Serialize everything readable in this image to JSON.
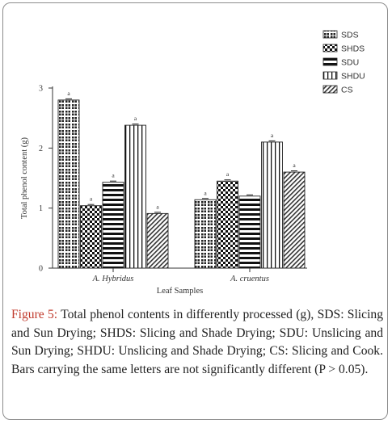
{
  "chart_data": {
    "type": "bar",
    "ylabel": "Total phenol content (g)",
    "xlabel": "Leaf Samples",
    "ylim": [
      0,
      3
    ],
    "yticks": [
      "0",
      "1",
      "2",
      "3"
    ],
    "grid": false,
    "legend_position": "top-right",
    "categories": [
      "A. Hybridus",
      "A. cruentus"
    ],
    "series": [
      {
        "name": "SDS",
        "pattern": "checker",
        "values": [
          2.8,
          1.14
        ],
        "labels": [
          "a",
          "a"
        ]
      },
      {
        "name": "SHDS",
        "pattern": "crosshatch",
        "values": [
          1.04,
          1.45
        ],
        "labels": [
          "a",
          "a"
        ]
      },
      {
        "name": "SDU",
        "pattern": "horizontal",
        "values": [
          1.43,
          1.2
        ],
        "labels": [
          "a",
          ""
        ]
      },
      {
        "name": "SHDU",
        "pattern": "vertical",
        "values": [
          2.38,
          2.1
        ],
        "labels": [
          "a",
          "a"
        ]
      },
      {
        "name": "CS",
        "pattern": "diagonal",
        "values": [
          0.91,
          1.6
        ],
        "labels": [
          "a",
          "a"
        ]
      }
    ]
  },
  "caption": {
    "label": "Figure 5:",
    "text": " Total phenol contents in differently processed (g), SDS: Slicing and Sun Drying; SHDS: Slicing and Shade Drying; SDU: Unslicing and Sun Drying; SHDU: Unslicing and Shade Drying; CS: Slicing and Cook. Bars carrying the same letters are not significantly different (P > 0.05)."
  }
}
